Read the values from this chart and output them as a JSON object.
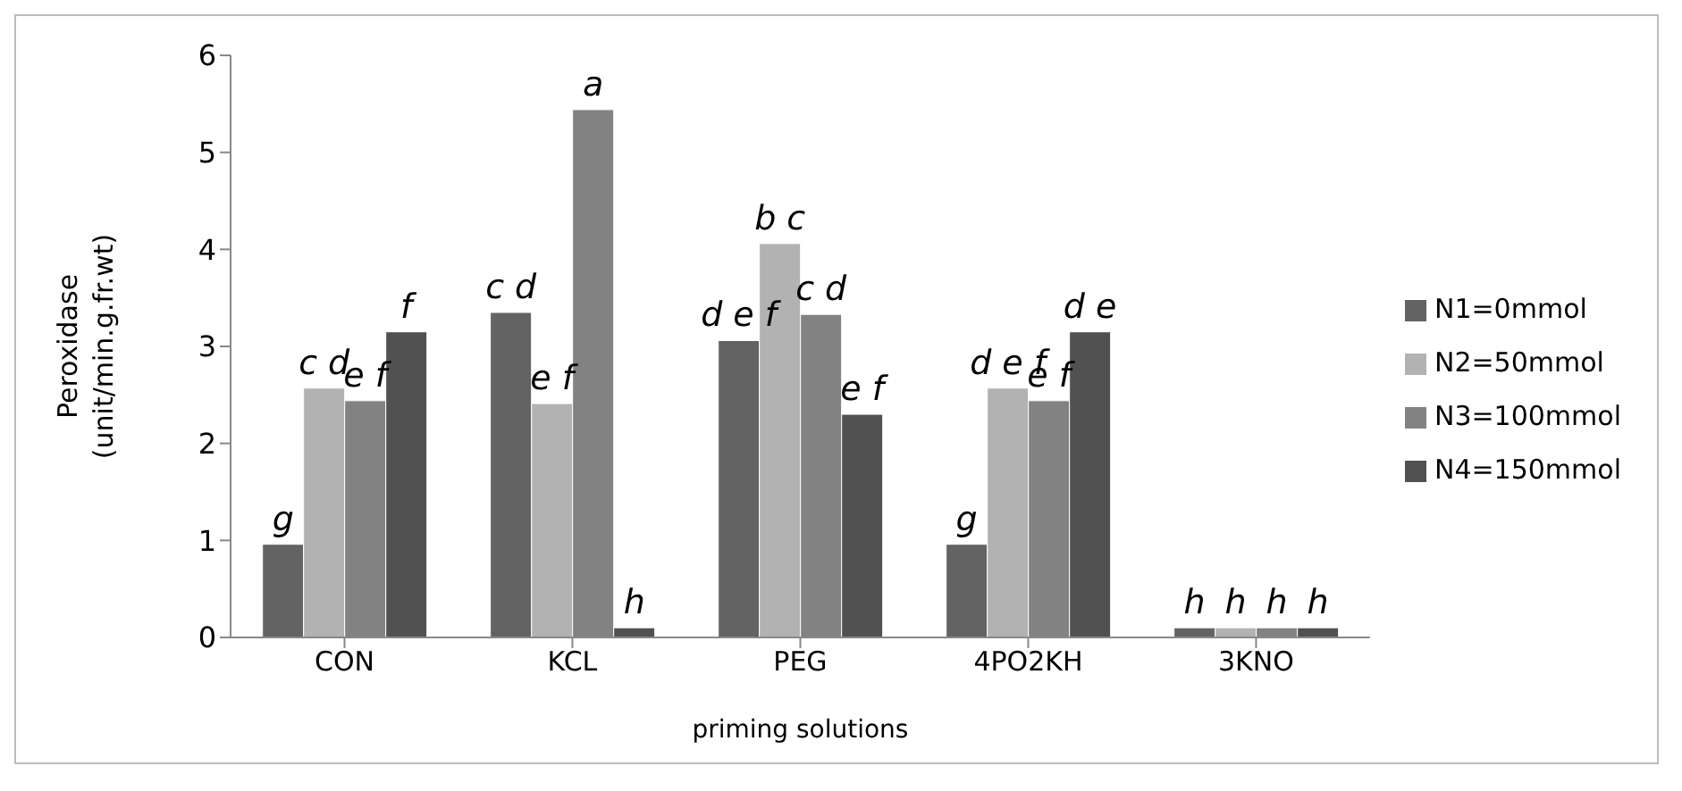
{
  "chart_data": {
    "type": "bar",
    "xlabel": "priming solutions",
    "ylabel": "Peroxidase (unit/min.g.fr.wt)",
    "categories": [
      "CON",
      "KCL",
      "PEG",
      "4PO2KH",
      "3KNO"
    ],
    "series": [
      {
        "name": "N1=0mmol",
        "color": "#636363",
        "values": [
          0.96,
          3.35,
          3.06,
          0.96,
          0.1
        ],
        "value_labels": [
          "g",
          "c d",
          "d e f",
          "g",
          "h"
        ]
      },
      {
        "name": "N2=50mmol",
        "color": "#b2b2b2",
        "values": [
          2.57,
          2.41,
          4.06,
          2.57,
          0.1
        ],
        "value_labels": [
          "c d",
          "e f",
          "b c",
          "d e f",
          "h"
        ]
      },
      {
        "name": "N3=100mmol",
        "color": "#828282",
        "values": [
          2.44,
          5.44,
          3.33,
          2.44,
          0.1
        ],
        "value_labels": [
          "e f",
          "a",
          "c d",
          "e f",
          "h"
        ]
      },
      {
        "name": "N4=150mmol",
        "color": "#515151",
        "values": [
          3.15,
          0.1,
          2.3,
          3.15,
          0.1
        ],
        "value_labels": [
          "f",
          "h",
          "e f",
          "d e",
          "h"
        ]
      }
    ],
    "ylim": [
      0,
      6
    ],
    "yticks": [
      0,
      1,
      2,
      3,
      4,
      5,
      6
    ],
    "grid": false,
    "legend": "right"
  }
}
